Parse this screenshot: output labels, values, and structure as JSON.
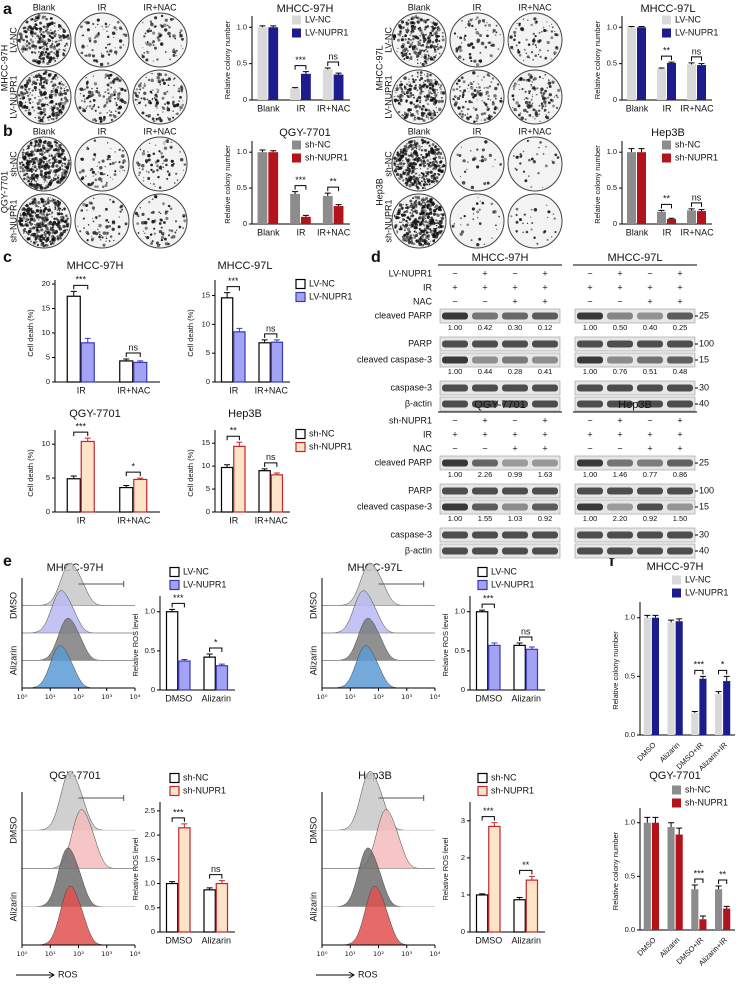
{
  "chart_data": [
    {
      "type": "bar",
      "title": "MHCC-97H",
      "ylabel": "Relative colony number",
      "categories": [
        "Blank",
        "IR",
        "IR+NAC"
      ],
      "series": [
        {
          "name": "LV-NC",
          "color": "#d9d9d9",
          "values": [
            1,
            0.16,
            0.42
          ],
          "errors": [
            0.02,
            0.01,
            0.02
          ]
        },
        {
          "name": "LV-NUPR1",
          "color": "#1c1c8c",
          "values": [
            1,
            0.36,
            0.35
          ],
          "errors": [
            0.02,
            0.03,
            0.02
          ]
        }
      ],
      "significance": [
        null,
        "***",
        "ns"
      ],
      "ylim": [
        0,
        1.1
      ],
      "yticks": [
        0,
        0.5,
        {
          "value": 1,
          "label": "1.0"
        }
      ],
      "legend": "upper right"
    },
    {
      "type": "bar",
      "title": "MHCC-97L",
      "ylabel": "Relative colony number",
      "categories": [
        "Blank",
        "IR",
        "IR+NAC"
      ],
      "series": [
        {
          "name": "LV-NC",
          "color": "#d9d9d9",
          "values": [
            1,
            0.43,
            0.49
          ],
          "errors": [
            0.01,
            0.01,
            0.02
          ]
        },
        {
          "name": "LV-NUPR1",
          "color": "#1c1c8c",
          "values": [
            1,
            0.51,
            0.48
          ],
          "errors": [
            0.01,
            0.01,
            0.02
          ]
        }
      ],
      "significance": [
        null,
        "**",
        "ns"
      ],
      "ylim": [
        0,
        1.1
      ],
      "yticks": [
        0,
        0.5,
        {
          "value": 1,
          "label": "1.0"
        }
      ],
      "legend": "upper right"
    },
    {
      "type": "bar",
      "title": "QGY-7701",
      "ylabel": "Relative colony number",
      "categories": [
        "Blank",
        "IR",
        "IR+NAC"
      ],
      "series": [
        {
          "name": "sh-NC",
          "color": "#8c8c8c",
          "values": [
            1,
            0.42,
            0.39
          ],
          "errors": [
            0.03,
            0.03,
            0.04
          ]
        },
        {
          "name": "sh-NUPR1",
          "color": "#b3141b",
          "values": [
            1,
            0.1,
            0.25
          ],
          "errors": [
            0.02,
            0.02,
            0.02
          ]
        }
      ],
      "significance": [
        null,
        "***",
        "**"
      ],
      "ylim": [
        0,
        1.1
      ],
      "yticks": [
        0,
        0.5,
        {
          "value": 1,
          "label": "1.0"
        }
      ],
      "legend": "upper right"
    },
    {
      "type": "bar",
      "title": "Hep3B",
      "ylabel": "Relative colony number",
      "categories": [
        "Blank",
        "IR",
        "IR+NAC"
      ],
      "series": [
        {
          "name": "sh-NC",
          "color": "#8c8c8c",
          "values": [
            1,
            0.17,
            0.19
          ],
          "errors": [
            0.05,
            0.02,
            0.02
          ]
        },
        {
          "name": "sh-NUPR1",
          "color": "#b3141b",
          "values": [
            1,
            0.07,
            0.18
          ],
          "errors": [
            0.05,
            0.01,
            0.02
          ]
        }
      ],
      "significance": [
        null,
        "**",
        "ns"
      ],
      "ylim": [
        0,
        1.1
      ],
      "yticks": [
        0,
        0.5,
        {
          "value": 1,
          "label": "1.0"
        }
      ],
      "legend": "upper right"
    },
    {
      "type": "bar",
      "title": "MHCC-97H",
      "ylabel": "Cell death (%)",
      "categories": [
        "IR",
        "IR+NAC"
      ],
      "series": [
        {
          "name": "LV-NC",
          "color": "#ffffff",
          "edgecolor": "#000000",
          "values": [
            17.5,
            4.3
          ],
          "errors": [
            1,
            0.4
          ]
        },
        {
          "name": "LV-NUPR1",
          "color": "#a3a3f5",
          "edgecolor": "#3a3ab0",
          "values": [
            8,
            4
          ],
          "errors": [
            0.9,
            0.3
          ]
        }
      ],
      "significance": [
        "***",
        "ns"
      ],
      "ylim": [
        0,
        20
      ],
      "yticks": [
        0,
        5,
        10,
        15,
        20
      ],
      "legend": "none"
    },
    {
      "type": "bar",
      "title": "MHCC-97L",
      "ylabel": "Cell death (%)",
      "categories": [
        "IR",
        "IR+NAC"
      ],
      "series": [
        {
          "name": "LV-NC",
          "color": "#ffffff",
          "edgecolor": "#000000",
          "values": [
            14.6,
            6.8
          ],
          "errors": [
            0.9,
            0.5
          ]
        },
        {
          "name": "LV-NUPR1",
          "color": "#a3a3f5",
          "edgecolor": "#3a3ab0",
          "values": [
            8.7,
            6.9
          ],
          "errors": [
            0.6,
            0.4
          ]
        }
      ],
      "significance": [
        "***",
        "ns"
      ],
      "ylim": [
        0,
        17
      ],
      "yticks": [
        0,
        5,
        10,
        15
      ],
      "legend": "upper right"
    },
    {
      "type": "bar",
      "title": "QGY-7701",
      "ylabel": "Cell death (%)",
      "categories": [
        "IR",
        "IR+NAC"
      ],
      "series": [
        {
          "name": "sh-NC",
          "color": "#ffffff",
          "edgecolor": "#000000",
          "values": [
            4.9,
            3.6
          ],
          "errors": [
            0.4,
            0.3
          ]
        },
        {
          "name": "sh-NUPR1",
          "color": "#fde3c8",
          "edgecolor": "#c0272d",
          "values": [
            10.4,
            4.8
          ],
          "errors": [
            0.5,
            0.2
          ]
        }
      ],
      "significance": [
        "***",
        "*"
      ],
      "ylim": [
        0,
        11.5
      ],
      "yticks": [
        0,
        5,
        10
      ],
      "legend": "none"
    },
    {
      "type": "bar",
      "title": "Hep3B",
      "ylabel": "Cell death (%)",
      "categories": [
        "IR",
        "IR+NAC"
      ],
      "series": [
        {
          "name": "sh-NC",
          "color": "#ffffff",
          "edgecolor": "#000000",
          "values": [
            9.7,
            9
          ],
          "errors": [
            0.6,
            0.4
          ]
        },
        {
          "name": "sh-NUPR1",
          "color": "#fde3c8",
          "edgecolor": "#c0272d",
          "values": [
            14.3,
            8.1
          ],
          "errors": [
            0.9,
            0.4
          ]
        }
      ],
      "significance": [
        "**",
        "ns"
      ],
      "ylim": [
        0,
        17
      ],
      "yticks": [
        0,
        5,
        10,
        15
      ],
      "legend": "upper right"
    },
    {
      "type": "bar",
      "title": "MHCC-97H",
      "ylabel": "Relative ROS level",
      "categories": [
        "DMSO",
        "Alizarin"
      ],
      "series": [
        {
          "name": "LV-NC",
          "color": "#ffffff",
          "edgecolor": "#000000",
          "values": [
            1,
            0.42
          ],
          "errors": [
            0.03,
            0.04
          ]
        },
        {
          "name": "LV-NUPR1",
          "color": "#a3a3f5",
          "edgecolor": "#3a3ab0",
          "values": [
            0.37,
            0.31
          ],
          "errors": [
            0.02,
            0.02
          ]
        }
      ],
      "significance": [
        "***",
        "*"
      ],
      "ylim": [
        0,
        1.15
      ],
      "yticks": [
        0,
        0.5,
        {
          "value": 1,
          "label": "1.0"
        }
      ],
      "legend": "upper right"
    },
    {
      "type": "bar",
      "title": "MHCC-97L",
      "ylabel": "Relative ROS level",
      "categories": [
        "DMSO",
        "Alizarin"
      ],
      "series": [
        {
          "name": "LV-NC",
          "color": "#ffffff",
          "edgecolor": "#000000",
          "values": [
            1,
            0.57
          ],
          "errors": [
            0.02,
            0.03
          ]
        },
        {
          "name": "LV-NUPR1",
          "color": "#a3a3f5",
          "edgecolor": "#3a3ab0",
          "values": [
            0.57,
            0.52
          ],
          "errors": [
            0.03,
            0.03
          ]
        }
      ],
      "significance": [
        "***",
        "ns"
      ],
      "ylim": [
        0,
        1.15
      ],
      "yticks": [
        0,
        0.5,
        {
          "value": 1,
          "label": "1.0"
        }
      ],
      "legend": "upper right"
    },
    {
      "type": "bar",
      "title": "QGY-7701",
      "ylabel": "Relative ROS level",
      "categories": [
        "DMSO",
        "Alizarin"
      ],
      "series": [
        {
          "name": "sh-NC",
          "color": "#ffffff",
          "edgecolor": "#000000",
          "values": [
            1,
            0.87
          ],
          "errors": [
            0.04,
            0.04
          ]
        },
        {
          "name": "sh-NUPR1",
          "color": "#fde3c8",
          "edgecolor": "#c0272d",
          "values": [
            2.15,
            1
          ],
          "errors": [
            0.08,
            0.06
          ]
        }
      ],
      "significance": [
        "***",
        "ns"
      ],
      "ylim": [
        0,
        2.6
      ],
      "yticks": [
        0,
        0.5,
        {
          "value": 1,
          "label": "1.0"
        },
        1.5,
        {
          "value": 2,
          "label": "2.0"
        },
        2.5
      ],
      "legend": "upper right"
    },
    {
      "type": "bar",
      "title": "Hep3B",
      "ylabel": "Relative ROS level",
      "categories": [
        "DMSO",
        "Alizarin"
      ],
      "series": [
        {
          "name": "sh-NC",
          "color": "#ffffff",
          "edgecolor": "#000000",
          "values": [
            1,
            0.87
          ],
          "errors": [
            0.03,
            0.06
          ]
        },
        {
          "name": "sh-NUPR1",
          "color": "#fde3c8",
          "edgecolor": "#c0272d",
          "values": [
            2.85,
            1.4
          ],
          "errors": [
            0.1,
            0.1
          ]
        }
      ],
      "significance": [
        "***",
        "**"
      ],
      "ylim": [
        0,
        3.4
      ],
      "yticks": [
        0,
        1,
        2,
        3
      ],
      "legend": "upper right"
    },
    {
      "type": "bar",
      "title": "MHCC-97H",
      "ylabel": "Relative colony number",
      "categories": [
        "DMSO",
        "Alizarin",
        "DMSO+IR",
        "Alizarin+IR"
      ],
      "series": [
        {
          "name": "LV-NC",
          "color": "#d9d9d9",
          "values": [
            1,
            0.96,
            0.19,
            0.35
          ],
          "errors": [
            0.02,
            0.02,
            0.01,
            0.02
          ]
        },
        {
          "name": "LV-NUPR1",
          "color": "#1c1c8c",
          "values": [
            1,
            0.97,
            0.48,
            0.46
          ],
          "errors": [
            0.02,
            0.02,
            0.02,
            0.04
          ]
        }
      ],
      "significance": [
        null,
        null,
        "***",
        "*"
      ],
      "ylim": [
        0,
        1.1
      ],
      "yticks": [
        {
          "value": 0,
          "label": "0.0"
        },
        0.5,
        {
          "value": 1,
          "label": "1.0"
        }
      ],
      "xtick_rotation": 45,
      "legend": "upper right"
    },
    {
      "type": "bar",
      "title": "QGY-7701",
      "ylabel": "Relative colony number",
      "categories": [
        "DMSO",
        "Alizarin",
        "DMSO+IR",
        "Alizarin+IR"
      ],
      "series": [
        {
          "name": "sh-NC",
          "color": "#8c8c8c",
          "values": [
            1,
            0.96,
            0.38,
            0.38
          ],
          "errors": [
            0.05,
            0.04,
            0.04,
            0.03
          ]
        },
        {
          "name": "sh-NUPR1",
          "color": "#b3141b",
          "values": [
            1,
            0.89,
            0.1,
            0.2
          ],
          "errors": [
            0.05,
            0.06,
            0.03,
            0.02
          ]
        }
      ],
      "significance": [
        null,
        null,
        "***",
        "**"
      ],
      "ylim": [
        0,
        1.1
      ],
      "yticks": [
        {
          "value": 0,
          "label": "0.0"
        },
        0.5,
        {
          "value": 1,
          "label": "1.0"
        }
      ],
      "xtick_rotation": 45,
      "legend": "upper right"
    }
  ],
  "panel_labels": [
    "a",
    "b",
    "c",
    "d",
    "e",
    "f"
  ],
  "colony_plates": [
    {
      "cell_line": "MHCC-97H",
      "columns": [
        "Blank",
        "IR",
        "IR+NAC"
      ],
      "rows": [
        "LV-NC",
        "LV-NUPR1"
      ]
    },
    {
      "cell_line": "MHCC-97L",
      "columns": [
        "Blank",
        "IR",
        "IR+NAC"
      ],
      "rows": [
        "LV-NC",
        "LV-NUPR1"
      ]
    },
    {
      "cell_line": "QGY-7701",
      "columns": [
        "Blank",
        "IR",
        "IR+NAC"
      ],
      "rows": [
        "sh-NC",
        "sh-NUPR1"
      ]
    },
    {
      "cell_line": "Hep3B",
      "columns": [
        "Blank",
        "IR",
        "IR+NAC"
      ],
      "rows": [
        "sh-NC",
        "sh-NUPR1"
      ]
    }
  ],
  "blots": [
    {
      "cell_lines": [
        "MHCC-97H",
        "MHCC-97L"
      ],
      "conditions": [
        {
          "label": "LV-NUPR1",
          "signs": [
            "−",
            "+",
            "−",
            "+",
            "−",
            "+",
            "−",
            "+"
          ]
        },
        {
          "label": "IR",
          "signs": [
            "+",
            "+",
            "+",
            "+",
            "+",
            "+",
            "+",
            "+"
          ]
        },
        {
          "label": "NAC",
          "signs": [
            "−",
            "−",
            "+",
            "+",
            "−",
            "−",
            "+",
            "+"
          ]
        }
      ],
      "bands": [
        {
          "label": "cleaved PARP",
          "mw": 25,
          "quant": [
            "1.00",
            "0.42",
            "0.30",
            "0.12",
            "1.00",
            "0.50",
            "0.40",
            "0.25"
          ]
        },
        {
          "label": "PARP",
          "mw": 100
        },
        {
          "label": "cleaved caspase-3",
          "mw": 15,
          "quant": [
            "1.00",
            "0.44",
            "0.28",
            "0.41",
            "1.00",
            "0.76",
            "0.51",
            "0.48"
          ]
        },
        {
          "label": "caspase-3",
          "mw": 30
        },
        {
          "label": "β-actin",
          "mw": 40
        }
      ]
    },
    {
      "cell_lines": [
        "QGY-7701",
        "Hep3B"
      ],
      "conditions": [
        {
          "label": "sh-NUPR1",
          "signs": [
            "−",
            "+",
            "−",
            "+",
            "−",
            "+",
            "−",
            "+"
          ]
        },
        {
          "label": "IR",
          "signs": [
            "+",
            "+",
            "+",
            "+",
            "+",
            "+",
            "+",
            "+"
          ]
        },
        {
          "label": "NAC",
          "signs": [
            "−",
            "−",
            "+",
            "+",
            "−",
            "−",
            "+",
            "+"
          ]
        }
      ],
      "bands": [
        {
          "label": "cleaved PARP",
          "mw": 25,
          "quant": [
            "1.00",
            "2.26",
            "0.99",
            "1.63",
            "1.00",
            "1.46",
            "0.77",
            "0.86"
          ]
        },
        {
          "label": "PARP",
          "mw": 100
        },
        {
          "label": "cleaved caspase-3",
          "mw": 15,
          "quant": [
            "1.00",
            "1.55",
            "1.03",
            "0.92",
            "1.00",
            "2.20",
            "0.92",
            "1.50"
          ]
        },
        {
          "label": "caspase-3",
          "mw": 30
        },
        {
          "label": "β-actin",
          "mw": 40
        }
      ]
    }
  ],
  "flow": {
    "rows": [
      "DMSO",
      "Alizarin"
    ],
    "xticks": [
      "10⁰",
      "10¹",
      "10²",
      "10³",
      "10⁴"
    ],
    "xlabel": "ROS"
  }
}
